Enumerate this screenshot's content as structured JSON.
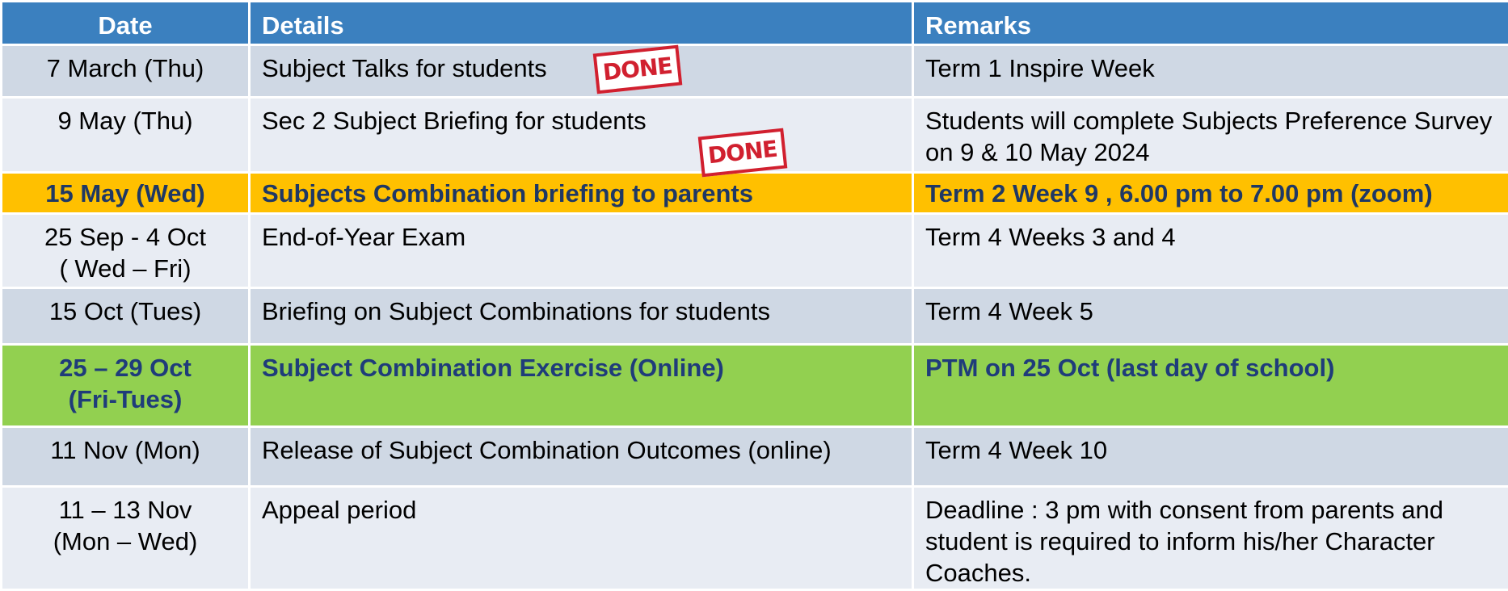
{
  "table": {
    "header": [
      "Date",
      "Details",
      "Remarks"
    ],
    "rows": [
      [
        "7 March (Thu)",
        "Subject Talks for students",
        "Term 1 Inspire Week"
      ],
      [
        "9 May (Thu)",
        "Sec 2 Subject Briefing for students",
        "Students will complete Subjects Preference Survey on 9 & 10 May 2024"
      ],
      [
        "15 May (Wed)",
        "Subjects Combination briefing to parents",
        "Term 2 Week 9 , 6.00 pm to 7.00 pm (zoom)"
      ],
      [
        "25 Sep  - 4 Oct\n( Wed – Fri)",
        "End-of-Year Exam",
        "Term 4 Weeks 3 and 4"
      ],
      [
        "15 Oct (Tues)",
        "Briefing on Subject Combinations for students",
        "Term 4 Week 5"
      ],
      [
        "25 – 29 Oct\n(Fri-Tues)",
        "Subject Combination Exercise (Online)",
        "PTM on 25 Oct (last day of school)"
      ],
      [
        "11 Nov (Mon)",
        "Release of Subject Combination Outcomes (online)",
        "Term 4 Week 10"
      ],
      [
        "11 – 13 Nov\n(Mon – Wed)",
        "Appeal period",
        "Deadline : 3 pm with consent from parents and student is required to inform his/her Character Coaches."
      ]
    ],
    "stamps": [
      "DONE",
      "DONE"
    ]
  }
}
